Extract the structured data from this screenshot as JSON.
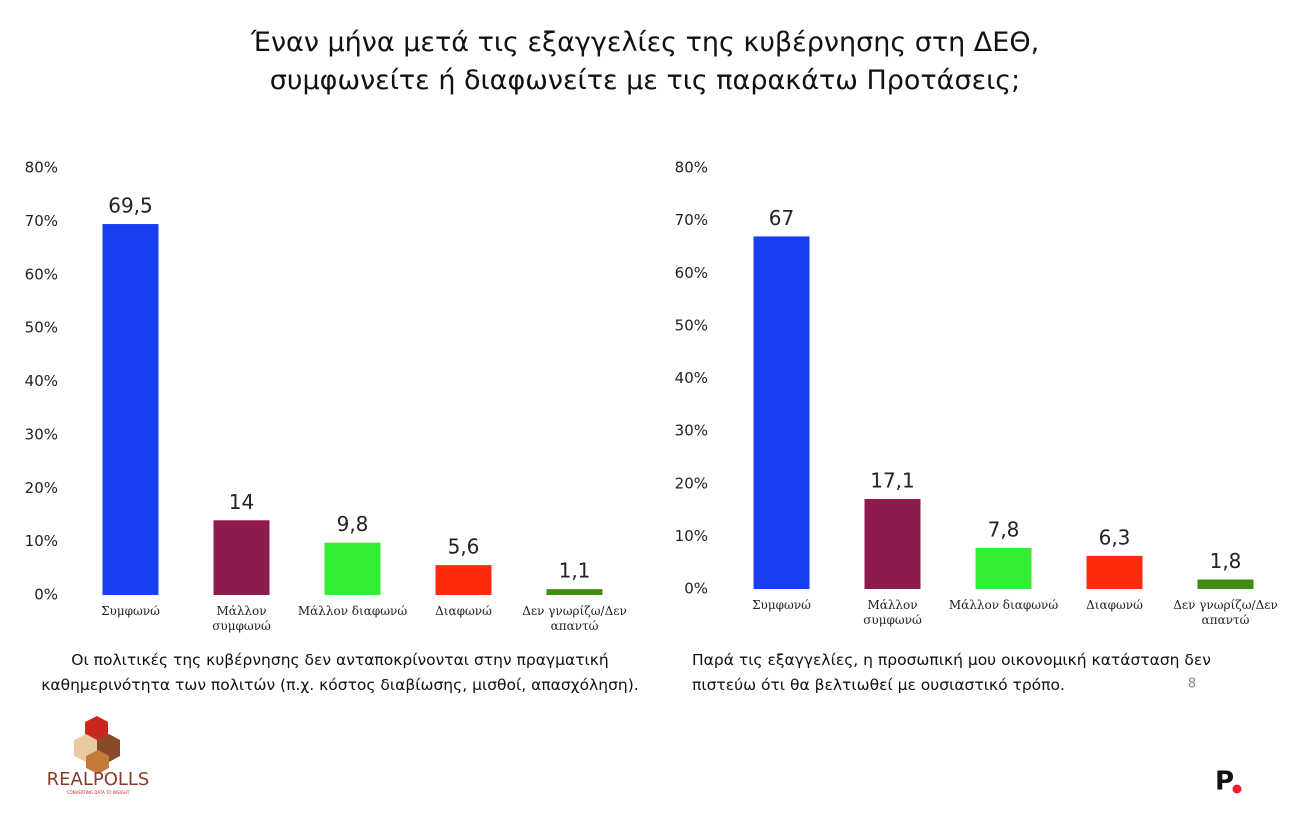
{
  "title": "Έναν μήνα μετά τις εξαγγελίες της κυβέρνησης στη ΔΕΘ,\nσυμφωνείτε ή διαφωνείτε με τις παρακάτω Προτάσεις;",
  "page_number": "8",
  "logo": {
    "name": "REALPOLLS",
    "tagline": "CONVERTING DATA TO INSIGHT",
    "brand": "P"
  },
  "chart_data": [
    {
      "type": "bar",
      "caption": "Οι πολιτικές της κυβέρνησης δεν ανταποκρίνονται στην πραγματική καθημερινότητα των πολιτών (π.χ. κόστος διαβίωσης, μισθοί, απασχόληση).",
      "categories": [
        "Συμφωνώ",
        "Μάλλον συμφωνώ",
        "Μάλλον διαφωνώ",
        "Διαφωνώ",
        "Δεν γνωρίζω/Δεν απαντώ"
      ],
      "values": [
        69.5,
        14,
        9.8,
        5.6,
        1.1
      ],
      "value_labels": [
        "69,5",
        "14",
        "9,8",
        "5,6",
        "1,1"
      ],
      "colors": [
        "#1a3ff0",
        "#8e1a50",
        "#33ee33",
        "#ff2b0c",
        "#3f8c10"
      ],
      "ylim": [
        0,
        80
      ],
      "yticks": [
        {
          "value": 0,
          "label": "0%"
        },
        {
          "value": 10,
          "label": "10%"
        },
        {
          "value": 20,
          "label": "20%"
        },
        {
          "value": 30,
          "label": "30%"
        },
        {
          "value": 40,
          "label": "40%"
        },
        {
          "value": 50,
          "label": "50%"
        },
        {
          "value": 60,
          "label": "60%"
        },
        {
          "value": 70,
          "label": "70%"
        },
        {
          "value": 80,
          "label": "80%"
        }
      ],
      "grid": false
    },
    {
      "type": "bar",
      "caption": "Παρά τις εξαγγελίες, η προσωπική μου οικονομική κατάσταση δεν πιστεύω ότι θα βελτιωθεί με ουσιαστικό τρόπο.",
      "categories": [
        "Συμφωνώ",
        "Μάλλον συμφωνώ",
        "Μάλλον διαφωνώ",
        "Διαφωνώ",
        "Δεν γνωρίζω/Δεν απαντώ"
      ],
      "values": [
        67,
        17.1,
        7.8,
        6.3,
        1.8
      ],
      "value_labels": [
        "67",
        "17,1",
        "7,8",
        "6,3",
        "1,8"
      ],
      "colors": [
        "#1a3ff0",
        "#8e1a50",
        "#33ee33",
        "#ff2b0c",
        "#3f8c10"
      ],
      "ylim": [
        0,
        80
      ],
      "yticks": [
        {
          "value": 0,
          "label": "0%"
        },
        {
          "value": 10,
          "label": "10%"
        },
        {
          "value": 20,
          "label": "20%"
        },
        {
          "value": 30,
          "label": "30%"
        },
        {
          "value": 40,
          "label": "40%"
        },
        {
          "value": 50,
          "label": "50%"
        },
        {
          "value": 60,
          "label": "60%"
        },
        {
          "value": 70,
          "label": "70%"
        },
        {
          "value": 80,
          "label": "80%"
        }
      ],
      "grid": false
    }
  ]
}
